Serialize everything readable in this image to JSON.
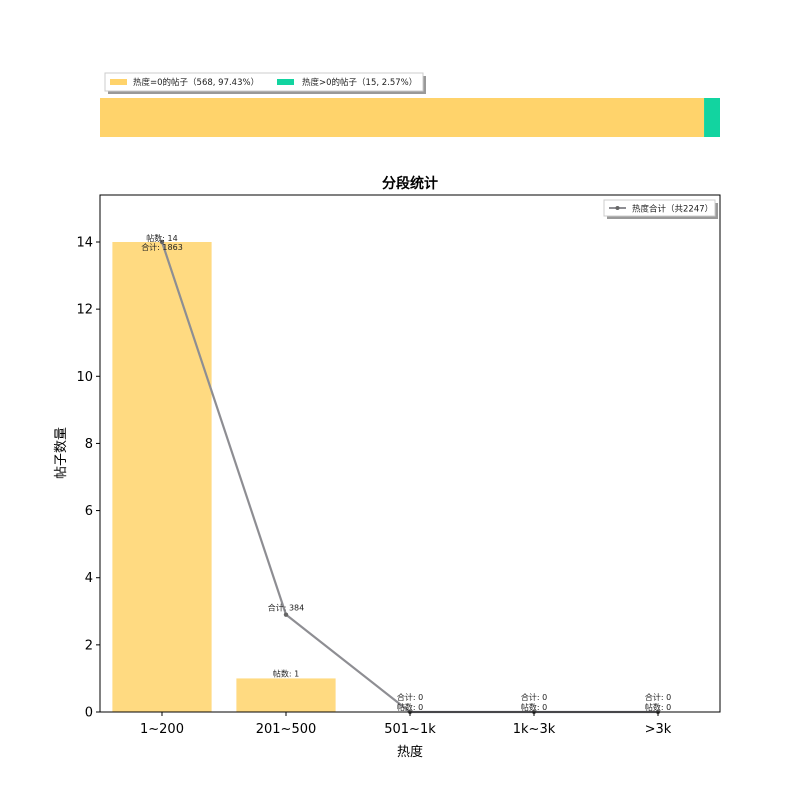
{
  "ratio_bar": {
    "segments": [
      {
        "label": "热度=0的帖子（568, 97.43%）",
        "value": 568,
        "percent": 97.43,
        "color": "#ffd36b"
      },
      {
        "label": "热度>0的帖子（15, 2.57%）",
        "value": 15,
        "percent": 2.57,
        "color": "#12d4a0"
      }
    ]
  },
  "chart_data": {
    "type": "bar",
    "title": "分段统计",
    "xlabel": "热度",
    "ylabel": "帖子数量",
    "categories": [
      "1~200",
      "201~500",
      "501~1k",
      "1k~3k",
      ">3k"
    ],
    "ylim": [
      0,
      15.4
    ],
    "yticks": [
      0,
      2,
      4,
      6,
      8,
      10,
      12,
      14
    ],
    "bar_series": {
      "values": [
        14,
        1,
        0,
        0,
        0
      ],
      "color": "#ffd36b",
      "labels": [
        "帖数: 14",
        "帖数: 1",
        "帖数: 0",
        "帖数: 0",
        "帖数: 0"
      ]
    },
    "line_series": {
      "name": "热度合计（共2247）",
      "values": [
        14,
        2.9,
        0,
        0,
        0
      ],
      "sums": [
        1863,
        384,
        0,
        0,
        0
      ],
      "labels": [
        "合计: 1863",
        "合计: 384",
        "合计: 0",
        "合计: 0",
        "合计: 0"
      ],
      "color": "#8e8e93"
    },
    "legend_position": "top-right",
    "grid": false
  }
}
